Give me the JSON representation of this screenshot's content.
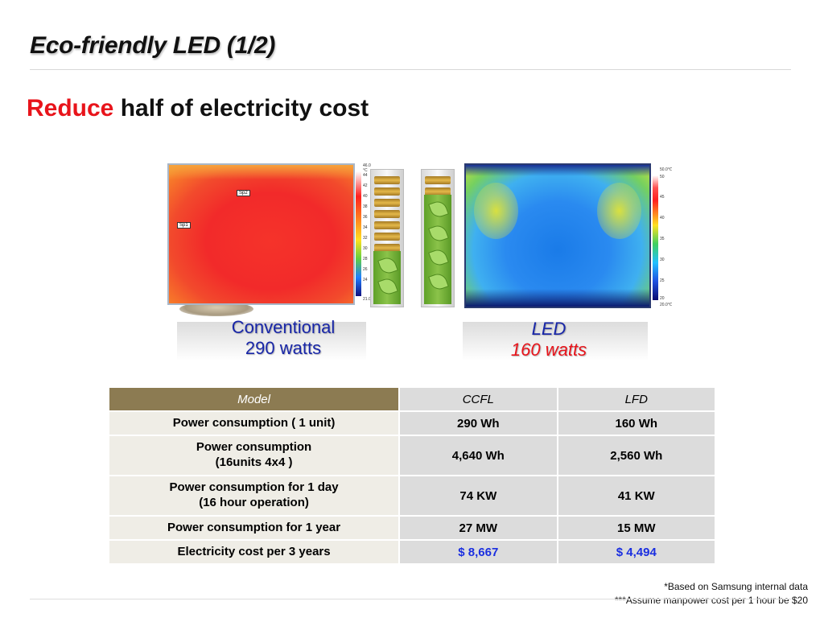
{
  "title": "Eco-friendly LED (1/2)",
  "headline": {
    "accent": "Reduce",
    "rest": " half of electricity cost"
  },
  "images": {
    "left_caption": {
      "line1": "Conventional",
      "line2": "290 watts"
    },
    "right_caption": {
      "line1": "LED",
      "line2": "160 watts"
    },
    "left_scale_ticks": [
      "46.0 °C",
      "44",
      "42",
      "40",
      "38",
      "36",
      "34",
      "32",
      "30",
      "28",
      "26",
      "24",
      "21.0"
    ],
    "right_scale_ticks": [
      "50.0℃",
      "50",
      "45",
      "40",
      "35",
      "30",
      "25",
      "20",
      "20.0℃"
    ],
    "left_tags": [
      "Sp2",
      "Sp1"
    ]
  },
  "table": {
    "headers": [
      "Model",
      "CCFL",
      "LFD"
    ],
    "rows": [
      {
        "label": [
          "Power consumption ( 1 unit)"
        ],
        "ccfl": "290 Wh",
        "lfd": "160 Wh",
        "highlight": false
      },
      {
        "label": [
          "Power consumption",
          "(16units 4x4 )"
        ],
        "ccfl": "4,640 Wh",
        "lfd": "2,560 Wh",
        "highlight": false
      },
      {
        "label": [
          "Power consumption for 1 day",
          "(16 hour operation)"
        ],
        "ccfl": "74 KW",
        "lfd": "41 KW",
        "highlight": false
      },
      {
        "label": [
          "Power consumption for 1 year"
        ],
        "ccfl": "27 MW",
        "lfd": "15 MW",
        "highlight": false
      },
      {
        "label": [
          "Electricity cost per 3 years"
        ],
        "ccfl": "$ 8,667",
        "lfd": "$ 4,494",
        "highlight": true
      }
    ]
  },
  "footnotes": [
    "*Based on Samsung internal data",
    "***Assume manpower cost per 1 hour be $20"
  ]
}
